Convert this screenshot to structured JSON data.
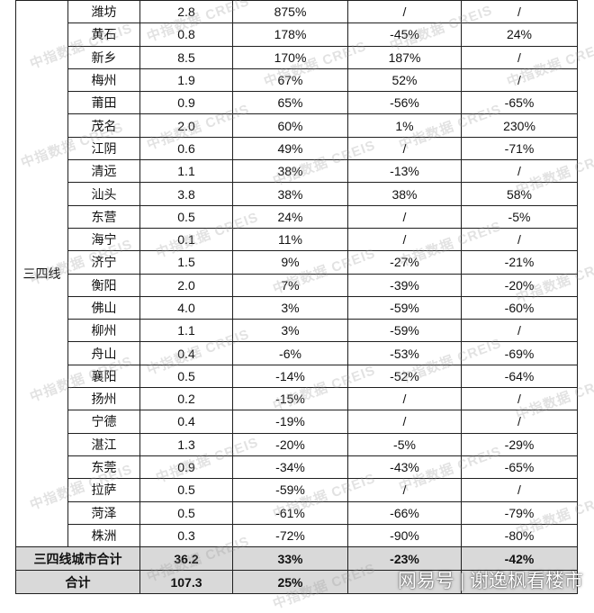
{
  "tier_label": "三四线",
  "rows": [
    [
      "潍坊",
      "2.8",
      "875%",
      "/",
      "/"
    ],
    [
      "黄石",
      "0.8",
      "178%",
      "-45%",
      "24%"
    ],
    [
      "新乡",
      "8.5",
      "170%",
      "187%",
      "/"
    ],
    [
      "梅州",
      "1.9",
      "67%",
      "52%",
      "/"
    ],
    [
      "莆田",
      "0.9",
      "65%",
      "-56%",
      "-65%"
    ],
    [
      "茂名",
      "2.0",
      "60%",
      "1%",
      "230%"
    ],
    [
      "江阴",
      "0.6",
      "49%",
      "/",
      "-71%"
    ],
    [
      "清远",
      "1.1",
      "38%",
      "-13%",
      "/"
    ],
    [
      "汕头",
      "3.8",
      "38%",
      "38%",
      "58%"
    ],
    [
      "东营",
      "0.5",
      "24%",
      "/",
      "-5%"
    ],
    [
      "海宁",
      "0.1",
      "11%",
      "/",
      "/"
    ],
    [
      "济宁",
      "1.5",
      "9%",
      "-27%",
      "-21%"
    ],
    [
      "衡阳",
      "2.0",
      "7%",
      "-39%",
      "-20%"
    ],
    [
      "佛山",
      "4.0",
      "3%",
      "-59%",
      "-60%"
    ],
    [
      "柳州",
      "1.1",
      "3%",
      "-59%",
      "/"
    ],
    [
      "舟山",
      "0.4",
      "-6%",
      "-53%",
      "-69%"
    ],
    [
      "襄阳",
      "0.5",
      "-14%",
      "-52%",
      "-64%"
    ],
    [
      "扬州",
      "0.2",
      "-15%",
      "/",
      "/"
    ],
    [
      "宁德",
      "0.4",
      "-19%",
      "/",
      "/"
    ],
    [
      "湛江",
      "1.3",
      "-20%",
      "-5%",
      "-29%"
    ],
    [
      "东莞",
      "0.9",
      "-34%",
      "-43%",
      "-65%"
    ],
    [
      "拉萨",
      "0.5",
      "-59%",
      "/",
      "/"
    ],
    [
      "菏泽",
      "0.5",
      "-61%",
      "-66%",
      "-79%"
    ],
    [
      "株洲",
      "0.3",
      "-72%",
      "-90%",
      "-80%"
    ]
  ],
  "subtotal": [
    "三四线城市合计",
    "36.2",
    "33%",
    "-23%",
    "-42%"
  ],
  "total": [
    "合计",
    "107.3",
    "25%",
    "",
    ""
  ],
  "watermark": "中指数据 CREIS",
  "credit": "网易号 | 谢逸枫看楼市"
}
